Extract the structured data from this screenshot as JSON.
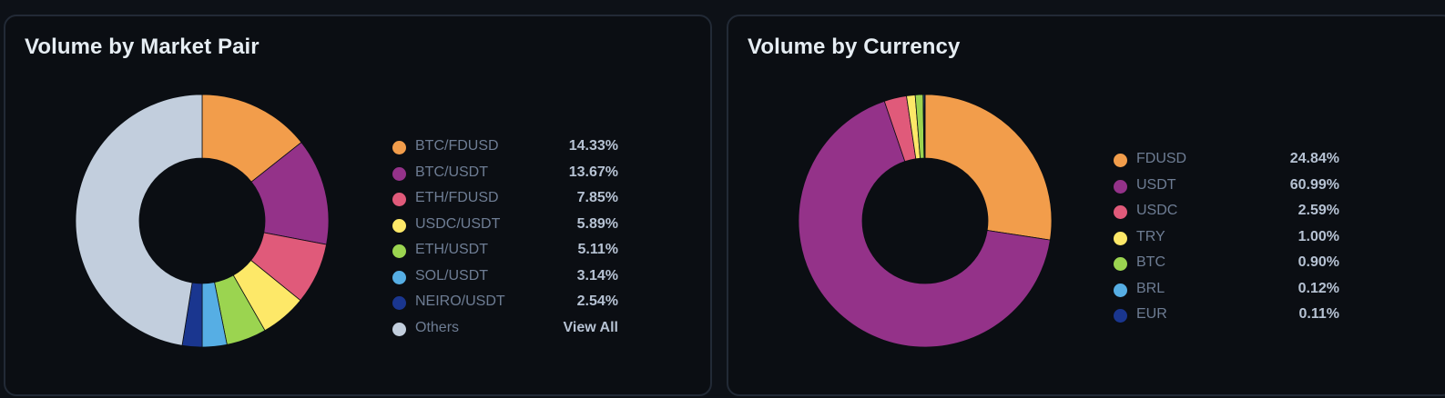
{
  "panels": {
    "pair": {
      "title": "Volume by Market Pair",
      "others_label": "Others",
      "view_all_label": "View All"
    },
    "currency": {
      "title": "Volume by Currency"
    }
  },
  "chart_data": [
    {
      "type": "pie",
      "title": "Volume by Market Pair",
      "legend": "right",
      "donut": true,
      "slices": [
        {
          "label": "BTC/FDUSD",
          "value": 14.33,
          "display": "14.33%",
          "color": "#f29d4b"
        },
        {
          "label": "BTC/USDT",
          "value": 13.67,
          "display": "13.67%",
          "color": "#943289"
        },
        {
          "label": "ETH/FDUSD",
          "value": 7.85,
          "display": "7.85%",
          "color": "#e05a7a"
        },
        {
          "label": "USDC/USDT",
          "value": 5.89,
          "display": "5.89%",
          "color": "#fde868"
        },
        {
          "label": "ETH/USDT",
          "value": 5.11,
          "display": "5.11%",
          "color": "#9bd450"
        },
        {
          "label": "SOL/USDT",
          "value": 3.14,
          "display": "3.14%",
          "color": "#56aee4"
        },
        {
          "label": "NEIRO/USDT",
          "value": 2.54,
          "display": "2.54%",
          "color": "#1a368f"
        },
        {
          "label": "Others",
          "value": 47.47,
          "color": "#c2cedd"
        }
      ]
    },
    {
      "type": "pie",
      "title": "Volume by Currency",
      "legend": "right",
      "donut": true,
      "slices": [
        {
          "label": "FDUSD",
          "value": 24.84,
          "display": "24.84%",
          "color": "#f29d4b"
        },
        {
          "label": "USDT",
          "value": 60.99,
          "display": "60.99%",
          "color": "#943289"
        },
        {
          "label": "USDC",
          "value": 2.59,
          "display": "2.59%",
          "color": "#e05a7a"
        },
        {
          "label": "TRY",
          "value": 1.0,
          "display": "1.00%",
          "color": "#fde868"
        },
        {
          "label": "BTC",
          "value": 0.9,
          "display": "0.90%",
          "color": "#9bd450"
        },
        {
          "label": "BRL",
          "value": 0.12,
          "display": "0.12%",
          "color": "#56aee4"
        },
        {
          "label": "EUR",
          "value": 0.11,
          "display": "0.11%",
          "color": "#1a368f"
        }
      ]
    }
  ]
}
